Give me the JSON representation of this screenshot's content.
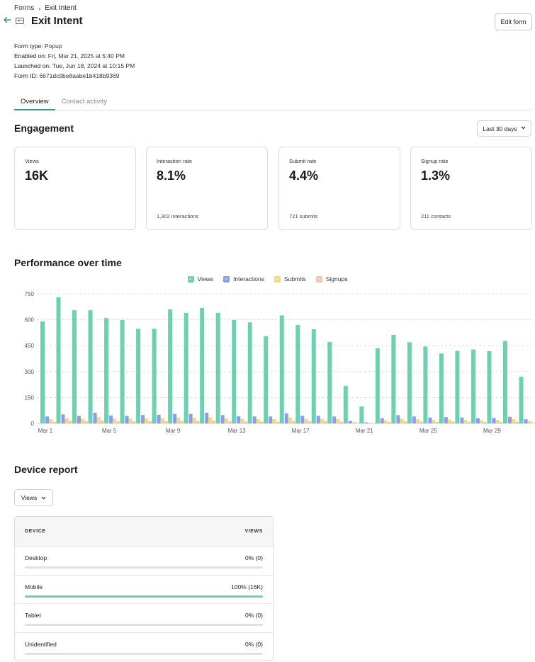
{
  "breadcrumb": {
    "parent": "Forms",
    "separator": "›",
    "current": "Exit Intent"
  },
  "header": {
    "title": "Exit Intent",
    "edit_label": "Edit form"
  },
  "meta": [
    {
      "key": "Form type:",
      "value": "Popup"
    },
    {
      "key": "Enabled on:",
      "value": "Fri, Mar 21, 2025 at 5:40 PM"
    },
    {
      "key": "Launched on:",
      "value": "Tue, Jun 18, 2024 at 10:15 PM"
    },
    {
      "key": "Form ID:",
      "value": "6671dc9be8aabe1b418b9369"
    }
  ],
  "tabs": [
    {
      "label": "Overview",
      "active": true
    },
    {
      "label": "Contact activity",
      "active": false
    }
  ],
  "engagement": {
    "title": "Engagement",
    "range_label": "Last 30 days",
    "cards": [
      {
        "label": "Views",
        "value": "16K",
        "sub": ""
      },
      {
        "label": "Interaction rate",
        "value": "8.1%",
        "sub": "1,302 interactions"
      },
      {
        "label": "Submit rate",
        "value": "4.4%",
        "sub": "721 submits"
      },
      {
        "label": "Signup rate",
        "value": "1.3%",
        "sub": "211 contacts"
      }
    ]
  },
  "performance": {
    "title": "Performance over time"
  },
  "colors": {
    "views": "#6dd0ae",
    "interactions": "#8b9cf0",
    "submits": "#f6d77a",
    "signups": "#e8c8b4",
    "accent": "#2a9d8f"
  },
  "chart_data": {
    "type": "bar",
    "ylim": [
      0,
      750
    ],
    "yticks": [
      "0",
      "150",
      "300",
      "450",
      "600",
      "750"
    ],
    "xtick_labels": [
      "Mar 1",
      "Mar 5",
      "Mar 9",
      "Mar 13",
      "Mar 17",
      "Mar 21",
      "Mar 25",
      "Mar 29"
    ],
    "categories": [
      "Mar 1",
      "Mar 2",
      "Mar 3",
      "Mar 4",
      "Mar 5",
      "Mar 6",
      "Mar 7",
      "Mar 8",
      "Mar 9",
      "Mar 10",
      "Mar 11",
      "Mar 12",
      "Mar 13",
      "Mar 14",
      "Mar 15",
      "Mar 16",
      "Mar 17",
      "Mar 18",
      "Mar 19",
      "Mar 20",
      "Mar 21",
      "Mar 22",
      "Mar 23",
      "Mar 24",
      "Mar 25",
      "Mar 26",
      "Mar 27",
      "Mar 28",
      "Mar 29",
      "Mar 30",
      "Mar 31"
    ],
    "legend_position": "top-center",
    "grid": true,
    "series": [
      {
        "name": "Views",
        "values": [
          590,
          730,
          655,
          655,
          610,
          598,
          548,
          548,
          660,
          640,
          668,
          640,
          598,
          585,
          505,
          625,
          570,
          545,
          472,
          218,
          98,
          435,
          512,
          470,
          445,
          405,
          420,
          428,
          418,
          478,
          270
        ]
      },
      {
        "name": "Interactions",
        "values": [
          40,
          52,
          44,
          62,
          46,
          44,
          48,
          50,
          55,
          55,
          62,
          48,
          42,
          40,
          40,
          58,
          44,
          44,
          40,
          14,
          6,
          30,
          48,
          40,
          34,
          36,
          34,
          30,
          32,
          38,
          24
        ]
      },
      {
        "name": "Submits",
        "values": [
          24,
          30,
          26,
          36,
          28,
          28,
          30,
          30,
          34,
          32,
          36,
          30,
          26,
          24,
          24,
          34,
          26,
          26,
          24,
          8,
          4,
          18,
          28,
          24,
          20,
          22,
          20,
          18,
          20,
          24,
          14
        ]
      },
      {
        "name": "Signups",
        "values": [
          10,
          14,
          12,
          16,
          12,
          12,
          12,
          14,
          14,
          14,
          16,
          12,
          10,
          10,
          10,
          14,
          12,
          12,
          10,
          4,
          2,
          8,
          12,
          10,
          8,
          10,
          8,
          8,
          8,
          10,
          6
        ]
      }
    ]
  },
  "device_report": {
    "title": "Device report",
    "metric_label": "Views",
    "col_device": "DEVICE",
    "col_views": "VIEWS",
    "rows": [
      {
        "device": "Desktop",
        "value": "0% (0)",
        "fraction": 0
      },
      {
        "device": "Mobile",
        "value": "100% (16K)",
        "fraction": 1
      },
      {
        "device": "Tablet",
        "value": "0% (0)",
        "fraction": 0
      },
      {
        "device": "Unidentified",
        "value": "0% (0)",
        "fraction": 0
      }
    ]
  }
}
